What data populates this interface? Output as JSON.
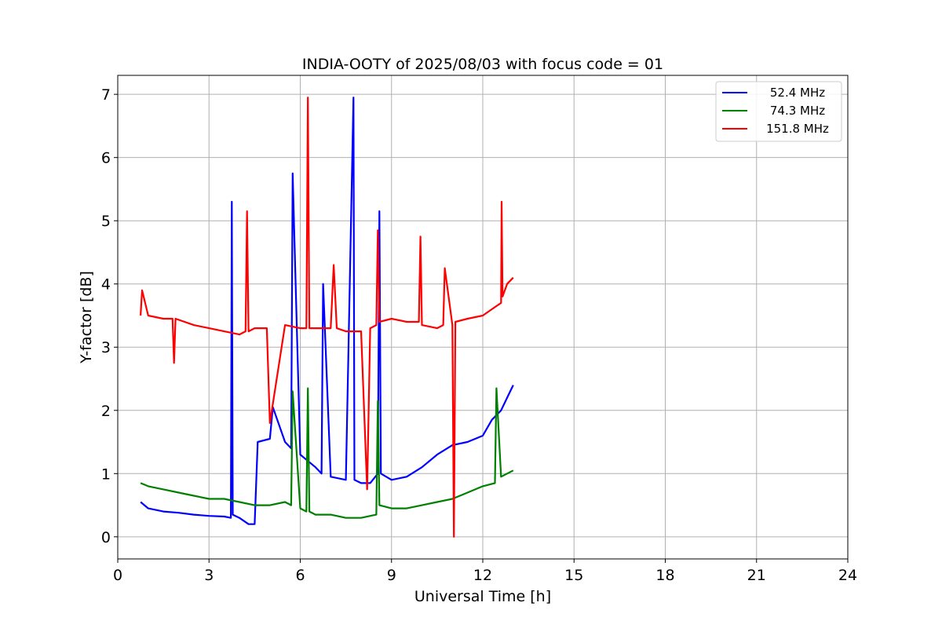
{
  "chart_data": {
    "type": "line",
    "title": "INDIA-OOTY of 2025/08/03 with focus code = 01",
    "xlabel": "Universal Time [h]",
    "ylabel": "Y-factor [dB]",
    "xlim": [
      0,
      24
    ],
    "ylim": [
      -0.35,
      7.3
    ],
    "xticks": [
      0,
      3,
      6,
      9,
      12,
      15,
      18,
      21,
      24
    ],
    "yticks": [
      0,
      1,
      2,
      3,
      4,
      5,
      6,
      7
    ],
    "grid": true,
    "legend_position": "top-right",
    "series": [
      {
        "name": "52.4 MHz",
        "color": "#0000ff",
        "x": [
          0.75,
          1.0,
          1.5,
          2.0,
          2.5,
          3.0,
          3.5,
          3.72,
          3.75,
          3.78,
          4.0,
          4.3,
          4.5,
          4.6,
          5.0,
          5.1,
          5.5,
          5.7,
          5.75,
          6.0,
          6.5,
          6.7,
          6.75,
          7.0,
          7.5,
          7.75,
          7.78,
          8.0,
          8.3,
          8.55,
          8.6,
          8.65,
          9.0,
          9.5,
          10.0,
          10.5,
          11.0,
          11.5,
          12.0,
          12.3,
          12.6,
          12.9,
          13.0
        ],
        "y": [
          0.55,
          0.45,
          0.4,
          0.38,
          0.35,
          0.33,
          0.32,
          0.3,
          5.3,
          0.35,
          0.3,
          0.2,
          0.2,
          1.5,
          1.55,
          2.05,
          1.5,
          1.4,
          5.75,
          1.3,
          1.1,
          1.0,
          4.0,
          0.95,
          0.9,
          6.95,
          0.9,
          0.85,
          0.85,
          1.0,
          5.15,
          1.0,
          0.9,
          0.95,
          1.1,
          1.3,
          1.45,
          1.5,
          1.6,
          1.85,
          2.0,
          2.3,
          2.4
        ]
      },
      {
        "name": "74.3 MHz",
        "color": "#008000",
        "x": [
          0.75,
          1.0,
          1.5,
          2.0,
          2.5,
          3.0,
          3.5,
          4.0,
          4.5,
          5.0,
          5.5,
          5.7,
          5.75,
          6.0,
          6.2,
          6.25,
          6.3,
          6.5,
          7.0,
          7.5,
          8.0,
          8.5,
          8.55,
          8.6,
          9.0,
          9.5,
          10.0,
          10.5,
          11.0,
          11.5,
          12.0,
          12.4,
          12.45,
          12.6,
          13.0
        ],
        "y": [
          0.85,
          0.8,
          0.75,
          0.7,
          0.65,
          0.6,
          0.6,
          0.55,
          0.5,
          0.5,
          0.55,
          0.5,
          2.3,
          0.45,
          0.4,
          2.35,
          0.4,
          0.35,
          0.35,
          0.3,
          0.3,
          0.35,
          2.15,
          0.5,
          0.45,
          0.45,
          0.5,
          0.55,
          0.6,
          0.7,
          0.8,
          0.85,
          2.35,
          0.95,
          1.05
        ]
      },
      {
        "name": "151.8 MHz",
        "color": "#ff0000",
        "x": [
          0.75,
          0.8,
          1.0,
          1.5,
          1.8,
          1.85,
          1.9,
          2.5,
          3.0,
          3.5,
          4.0,
          4.2,
          4.25,
          4.3,
          4.5,
          4.9,
          5.0,
          5.5,
          6.0,
          6.2,
          6.25,
          6.3,
          6.5,
          7.0,
          7.1,
          7.2,
          7.5,
          8.0,
          8.2,
          8.3,
          8.5,
          8.55,
          8.6,
          9.0,
          9.5,
          9.9,
          9.95,
          10.0,
          10.5,
          10.7,
          10.75,
          11.0,
          11.05,
          11.1,
          11.5,
          12.0,
          12.3,
          12.6,
          12.62,
          12.65,
          12.8,
          13.0
        ],
        "y": [
          3.5,
          3.9,
          3.5,
          3.45,
          3.45,
          2.75,
          3.45,
          3.35,
          3.3,
          3.25,
          3.2,
          3.25,
          5.15,
          3.25,
          3.3,
          3.3,
          1.8,
          3.35,
          3.3,
          3.3,
          6.95,
          3.3,
          3.3,
          3.3,
          4.3,
          3.3,
          3.25,
          3.25,
          0.75,
          3.3,
          3.35,
          4.85,
          3.4,
          3.45,
          3.4,
          3.4,
          4.75,
          3.35,
          3.3,
          3.35,
          4.25,
          3.35,
          0.0,
          3.4,
          3.45,
          3.5,
          3.6,
          3.7,
          5.3,
          3.8,
          4.0,
          4.1
        ]
      }
    ]
  }
}
